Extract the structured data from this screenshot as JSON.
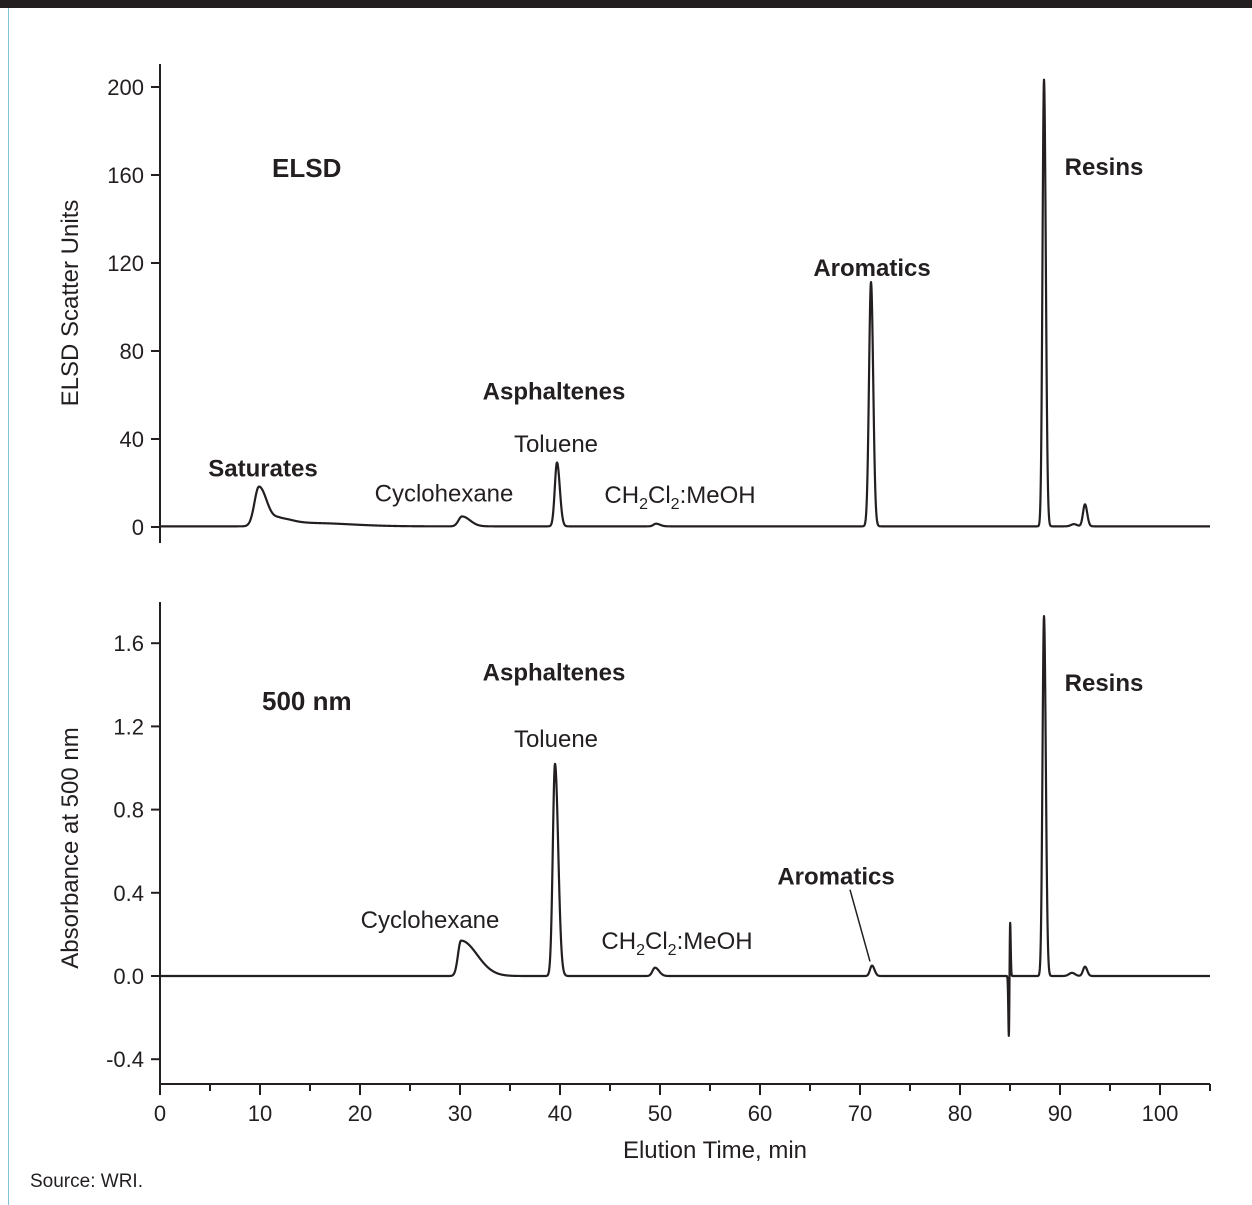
{
  "source_note": "Source: WRI.",
  "chart_data": [
    {
      "type": "line",
      "panel": "top",
      "detector_label": "ELSD",
      "ylabel": "ELSD Scatter Units",
      "ylim": [
        0,
        205
      ],
      "y_ticks": [
        "0",
        "40",
        "80",
        "120",
        "160",
        "200"
      ],
      "y_tick_values": [
        0,
        40,
        80,
        120,
        160,
        200
      ],
      "x_range": [
        0,
        105
      ],
      "baseline": 0.3,
      "peaks": [
        {
          "x": 9.9,
          "height": 18,
          "width_left": 0.45,
          "width_right": 0.8
        },
        {
          "x": 12.0,
          "height": 3,
          "width_left": 0.6,
          "width_right": 1.2
        },
        {
          "x": 15.0,
          "height": 1.5,
          "width_left": 2.0,
          "width_right": 4.0
        },
        {
          "x": 30.2,
          "height": 4.5,
          "width_left": 0.35,
          "width_right": 0.8
        },
        {
          "x": 39.7,
          "height": 29,
          "width_left": 0.22,
          "width_right": 0.28
        },
        {
          "x": 49.6,
          "height": 1.2,
          "width_left": 0.25,
          "width_right": 0.4
        },
        {
          "x": 71.1,
          "height": 111,
          "width_left": 0.2,
          "width_right": 0.22
        },
        {
          "x": 88.4,
          "height": 203,
          "width_left": 0.15,
          "width_right": 0.18
        },
        {
          "x": 91.4,
          "height": 1.0,
          "width_left": 0.3,
          "width_right": 0.3
        },
        {
          "x": 92.5,
          "height": 10,
          "width_left": 0.2,
          "width_right": 0.22
        }
      ],
      "annotations": [
        {
          "text": "Saturates",
          "x": 10.3,
          "y": 23,
          "bold": true
        },
        {
          "text": "Cyclohexane",
          "x": 28.4,
          "y": 11.5,
          "bold": false
        },
        {
          "text": "Asphaltenes",
          "x": 39.4,
          "y": 58,
          "bold": true
        },
        {
          "text": "Toluene",
          "x": 39.6,
          "y": 34,
          "bold": false
        },
        {
          "text": "Aromatics",
          "x": 71.2,
          "y": 114,
          "bold": true
        },
        {
          "text": "Resins",
          "x": 94.4,
          "y": 160,
          "bold": true
        }
      ],
      "solvent_label": {
        "parts": [
          "CH",
          "2",
          "Cl",
          "2",
          ":MeOH"
        ],
        "x": 52,
        "y": 11
      }
    },
    {
      "type": "line",
      "panel": "bottom",
      "detector_label": "500 nm",
      "ylabel": "Absorbance at 500 nm",
      "ylim": [
        -0.45,
        1.8
      ],
      "y_ticks": [
        "-0.4",
        "0.0",
        "0.4",
        "0.8",
        "1.2",
        "1.6"
      ],
      "y_tick_values": [
        -0.4,
        0.0,
        0.4,
        0.8,
        1.2,
        1.6
      ],
      "xlabel": "Elution Time, min",
      "x_range": [
        0,
        105
      ],
      "x_ticks": [
        "0",
        "10",
        "20",
        "30",
        "40",
        "50",
        "60",
        "70",
        "80",
        "90",
        "100"
      ],
      "x_tick_values": [
        0,
        10,
        20,
        30,
        40,
        50,
        60,
        70,
        80,
        90,
        100
      ],
      "baseline": 0.0,
      "peaks": [
        {
          "x": 30.1,
          "height": 0.17,
          "width_left": 0.3,
          "width_right": 1.6
        },
        {
          "x": 39.5,
          "height": 1.02,
          "width_left": 0.22,
          "width_right": 0.32
        },
        {
          "x": 49.5,
          "height": 0.04,
          "width_left": 0.25,
          "width_right": 0.4
        },
        {
          "x": 71.2,
          "height": 0.05,
          "width_left": 0.2,
          "width_right": 0.25
        },
        {
          "x": 85.0,
          "height": 0.32,
          "width_left": 0.06,
          "width_right": 0.06
        },
        {
          "x": 84.9,
          "height": -0.35,
          "width_left": 0.06,
          "width_right": 0.06
        },
        {
          "x": 88.4,
          "height": 1.73,
          "width_left": 0.15,
          "width_right": 0.18
        },
        {
          "x": 91.2,
          "height": 0.015,
          "width_left": 0.3,
          "width_right": 0.3
        },
        {
          "x": 92.5,
          "height": 0.045,
          "width_left": 0.2,
          "width_right": 0.22
        }
      ],
      "annotations": [
        {
          "text": "Cyclohexane",
          "x": 27.0,
          "y": 0.23,
          "bold": false
        },
        {
          "text": "Asphaltenes",
          "x": 39.4,
          "y": 1.42,
          "bold": true
        },
        {
          "text": "Toluene",
          "x": 39.6,
          "y": 1.1,
          "bold": false
        },
        {
          "text": "Aromatics",
          "x": 67.6,
          "y": 0.44,
          "bold": true
        },
        {
          "text": "Resins",
          "x": 94.4,
          "y": 1.37,
          "bold": true
        }
      ],
      "solvent_label": {
        "parts": [
          "CH",
          "2",
          "Cl",
          "2",
          ":MeOH"
        ],
        "x": 51.7,
        "y": 0.13
      },
      "aromatics_pointer": {
        "from": [
          69.0,
          0.415
        ],
        "to": [
          71.0,
          0.07
        ]
      }
    }
  ]
}
